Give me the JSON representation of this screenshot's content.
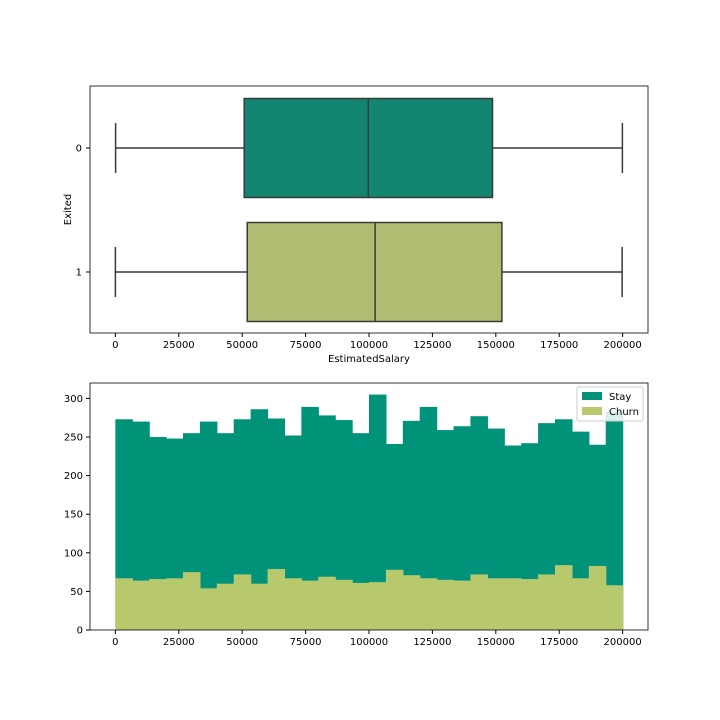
{
  "chart_data": [
    {
      "type": "boxplot",
      "orientation": "horizontal",
      "xlabel": "EstimatedSalary",
      "ylabel": "Exited",
      "xlim": [
        -10000,
        210000
      ],
      "xticks": [
        0,
        25000,
        50000,
        75000,
        100000,
        125000,
        150000,
        175000,
        200000
      ],
      "categories": [
        "0",
        "1"
      ],
      "boxes": [
        {
          "category": "0",
          "min": 90,
          "q1": 50800,
          "median": 99700,
          "q3": 148700,
          "max": 199900,
          "color": "#138672"
        },
        {
          "category": "1",
          "min": 10,
          "q1": 52000,
          "median": 102400,
          "q3": 152400,
          "max": 199800,
          "color": "#afbd72"
        }
      ],
      "grid": false
    },
    {
      "type": "histogram",
      "stacked": false,
      "xlim": [
        -10000,
        210000
      ],
      "ylim": [
        0,
        320
      ],
      "xticks": [
        0,
        25000,
        50000,
        75000,
        100000,
        125000,
        150000,
        175000,
        200000
      ],
      "yticks": [
        0,
        50,
        100,
        150,
        200,
        250,
        300
      ],
      "bin_start": 0,
      "bin_width": 6666.67,
      "series": [
        {
          "name": "Stay",
          "color": "#00937a",
          "values": [
            273,
            270,
            250,
            248,
            255,
            270,
            255,
            273,
            286,
            274,
            252,
            289,
            278,
            272,
            255,
            305,
            241,
            271,
            289,
            259,
            264,
            277,
            261,
            239,
            242,
            268,
            273,
            257,
            240,
            283
          ]
        },
        {
          "name": "Churn",
          "color": "#b8c86c",
          "values": [
            67,
            64,
            66,
            67,
            75,
            54,
            60,
            72,
            60,
            79,
            67,
            64,
            69,
            65,
            61,
            62,
            78,
            71,
            67,
            65,
            64,
            72,
            67,
            67,
            66,
            72,
            84,
            67,
            83,
            58
          ]
        }
      ],
      "legend": {
        "position": "top-right",
        "entries": [
          "Stay",
          "Churn"
        ]
      },
      "grid": false
    }
  ]
}
